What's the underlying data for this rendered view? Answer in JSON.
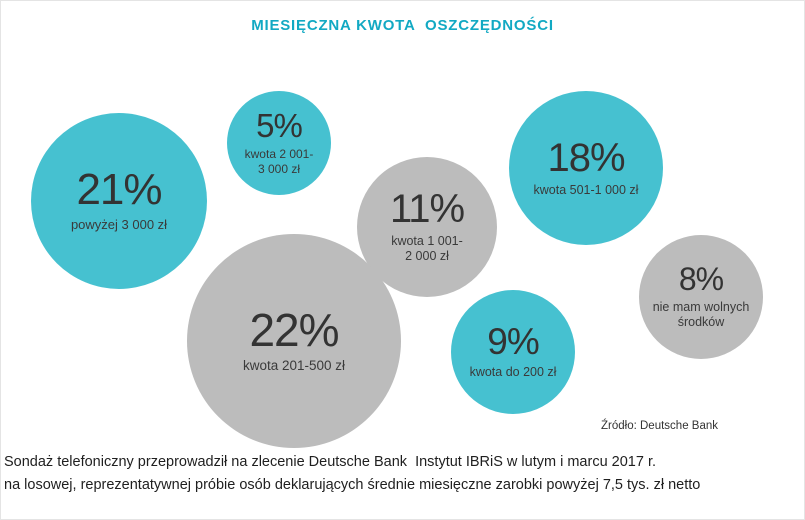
{
  "title": "MIESIĘCZNA KWOTA  OSZCZĘDNOŚCI",
  "colors": {
    "teal": "#46c1d0",
    "gray": "#bcbcbc",
    "title_text": "#12a9c3",
    "bubble_text": "#383838"
  },
  "chart_data": {
    "type": "bubble",
    "title": "MIESIĘCZNA KWOTA  OSZCZĘDNOŚCI",
    "unit": "%",
    "legend": "none",
    "bubbles": [
      {
        "pct": 21,
        "pct_label": "21%",
        "category": "powyżej 3 000 zł",
        "color": "teal"
      },
      {
        "pct": 5,
        "pct_label": "5%",
        "category": "kwota 2 001-3 000 zł",
        "color": "teal"
      },
      {
        "pct": 11,
        "pct_label": "11%",
        "category": "kwota 1 001-2 000 zł",
        "color": "gray"
      },
      {
        "pct": 18,
        "pct_label": "18%",
        "category": "kwota 501-1 000 zł",
        "color": "teal"
      },
      {
        "pct": 22,
        "pct_label": "22%",
        "category": "kwota 201-500 zł",
        "color": "gray"
      },
      {
        "pct": 9,
        "pct_label": "9%",
        "category": "kwota do 200 zł",
        "color": "teal"
      },
      {
        "pct": 8,
        "pct_label": "8%",
        "category": "nie mam wolnych środków",
        "color": "gray"
      }
    ],
    "source": "Źródło: Deutsche Bank"
  },
  "footnote": {
    "line1": "Sondaż telefoniczny przeprowadził na zlecenie Deutsche Bank  Instytut IBRiS w lutym i marcu 2017 r.",
    "line2": "na losowej, reprezentatywnej próbie osób deklarujących średnie miesięczne zarobki powyżej 7,5 tys. zł netto"
  }
}
